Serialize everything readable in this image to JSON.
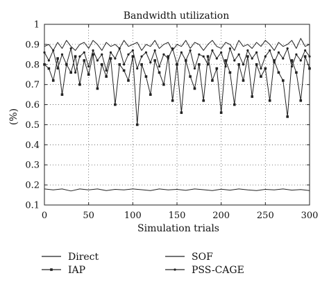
{
  "chart_data": {
    "type": "line",
    "title": "Bandwidth utilization",
    "xlabel": "Simulation trials",
    "ylabel": "(%)",
    "xlim": [
      0,
      300
    ],
    "ylim": [
      0.1,
      1.0
    ],
    "xticks": [
      0,
      50,
      100,
      150,
      200,
      250,
      300
    ],
    "yticks": [
      0.1,
      0.2,
      0.3,
      0.4,
      0.5,
      0.6,
      0.7,
      0.8,
      0.9,
      1.0
    ],
    "xtick_labels": [
      "0",
      "50",
      "100",
      "150",
      "200",
      "250",
      "300"
    ],
    "ytick_labels": [
      "0.1",
      "0.2",
      "0.3",
      "0.4",
      "0.5",
      "0.6",
      "0.7",
      "0.8",
      "0.9",
      "1"
    ],
    "grid": "dotted",
    "legend_position": "bottom",
    "series": [
      {
        "name": "Direct",
        "marker": "none",
        "x": [
          0,
          10,
          20,
          30,
          40,
          50,
          60,
          70,
          80,
          90,
          100,
          110,
          120,
          130,
          140,
          150,
          160,
          170,
          180,
          190,
          200,
          210,
          220,
          230,
          240,
          250,
          260,
          270,
          280,
          290,
          300
        ],
        "y": [
          0.18,
          0.175,
          0.18,
          0.17,
          0.18,
          0.175,
          0.18,
          0.172,
          0.178,
          0.175,
          0.18,
          0.176,
          0.172,
          0.18,
          0.175,
          0.178,
          0.173,
          0.18,
          0.176,
          0.172,
          0.179,
          0.174,
          0.18,
          0.175,
          0.172,
          0.178,
          0.175,
          0.18,
          0.174,
          0.177,
          0.172
        ]
      },
      {
        "name": "IAP",
        "marker": "square",
        "x": [
          0,
          5,
          10,
          15,
          20,
          25,
          30,
          35,
          40,
          45,
          50,
          55,
          60,
          65,
          70,
          75,
          80,
          85,
          90,
          95,
          100,
          105,
          110,
          115,
          120,
          125,
          130,
          135,
          140,
          145,
          150,
          155,
          160,
          165,
          170,
          175,
          180,
          185,
          190,
          195,
          200,
          205,
          210,
          215,
          220,
          225,
          230,
          235,
          240,
          245,
          250,
          255,
          260,
          265,
          270,
          275,
          280,
          285,
          290,
          295,
          300
        ],
        "y": [
          0.8,
          0.78,
          0.72,
          0.83,
          0.65,
          0.8,
          0.76,
          0.84,
          0.7,
          0.82,
          0.75,
          0.85,
          0.68,
          0.8,
          0.74,
          0.83,
          0.6,
          0.8,
          0.77,
          0.72,
          0.84,
          0.5,
          0.8,
          0.74,
          0.65,
          0.82,
          0.76,
          0.7,
          0.84,
          0.62,
          0.8,
          0.56,
          0.82,
          0.74,
          0.68,
          0.8,
          0.62,
          0.84,
          0.72,
          0.78,
          0.56,
          0.82,
          0.76,
          0.6,
          0.8,
          0.72,
          0.84,
          0.64,
          0.8,
          0.74,
          0.78,
          0.62,
          0.82,
          0.76,
          0.72,
          0.54,
          0.82,
          0.76,
          0.62,
          0.84,
          0.78
        ]
      },
      {
        "name": "SOF",
        "marker": "none",
        "x": [
          0,
          5,
          10,
          15,
          20,
          25,
          30,
          35,
          40,
          45,
          50,
          55,
          60,
          65,
          70,
          75,
          80,
          85,
          90,
          95,
          100,
          105,
          110,
          115,
          120,
          125,
          130,
          135,
          140,
          145,
          150,
          155,
          160,
          165,
          170,
          175,
          180,
          185,
          190,
          195,
          200,
          205,
          210,
          215,
          220,
          225,
          230,
          235,
          240,
          245,
          250,
          255,
          260,
          265,
          270,
          275,
          280,
          285,
          290,
          295,
          300
        ],
        "y": [
          0.89,
          0.9,
          0.87,
          0.91,
          0.88,
          0.92,
          0.89,
          0.87,
          0.9,
          0.91,
          0.88,
          0.92,
          0.9,
          0.87,
          0.91,
          0.89,
          0.9,
          0.88,
          0.92,
          0.89,
          0.9,
          0.91,
          0.87,
          0.9,
          0.89,
          0.92,
          0.88,
          0.9,
          0.91,
          0.87,
          0.9,
          0.89,
          0.92,
          0.88,
          0.91,
          0.9,
          0.87,
          0.9,
          0.92,
          0.89,
          0.88,
          0.91,
          0.9,
          0.87,
          0.92,
          0.89,
          0.9,
          0.88,
          0.91,
          0.89,
          0.92,
          0.9,
          0.87,
          0.91,
          0.89,
          0.9,
          0.92,
          0.88,
          0.93,
          0.89,
          0.9
        ]
      },
      {
        "name": "PSS-CAGE",
        "marker": "dot",
        "x": [
          0,
          5,
          10,
          15,
          20,
          25,
          30,
          35,
          40,
          45,
          50,
          55,
          60,
          65,
          70,
          75,
          80,
          85,
          90,
          95,
          100,
          105,
          110,
          115,
          120,
          125,
          130,
          135,
          140,
          145,
          150,
          155,
          160,
          165,
          170,
          175,
          180,
          185,
          190,
          195,
          200,
          205,
          210,
          215,
          220,
          225,
          230,
          235,
          240,
          245,
          250,
          255,
          260,
          265,
          270,
          275,
          280,
          285,
          290,
          295,
          300
        ],
        "y": [
          0.86,
          0.82,
          0.87,
          0.78,
          0.85,
          0.8,
          0.88,
          0.76,
          0.84,
          0.86,
          0.79,
          0.87,
          0.82,
          0.85,
          0.77,
          0.86,
          0.83,
          0.88,
          0.8,
          0.85,
          0.87,
          0.78,
          0.84,
          0.86,
          0.81,
          0.87,
          0.79,
          0.85,
          0.83,
          0.88,
          0.8,
          0.86,
          0.82,
          0.87,
          0.78,
          0.85,
          0.84,
          0.8,
          0.87,
          0.83,
          0.86,
          0.79,
          0.88,
          0.82,
          0.85,
          0.8,
          0.87,
          0.83,
          0.86,
          0.78,
          0.84,
          0.87,
          0.81,
          0.86,
          0.83,
          0.88,
          0.79,
          0.85,
          0.82,
          0.87,
          0.84
        ]
      }
    ]
  }
}
